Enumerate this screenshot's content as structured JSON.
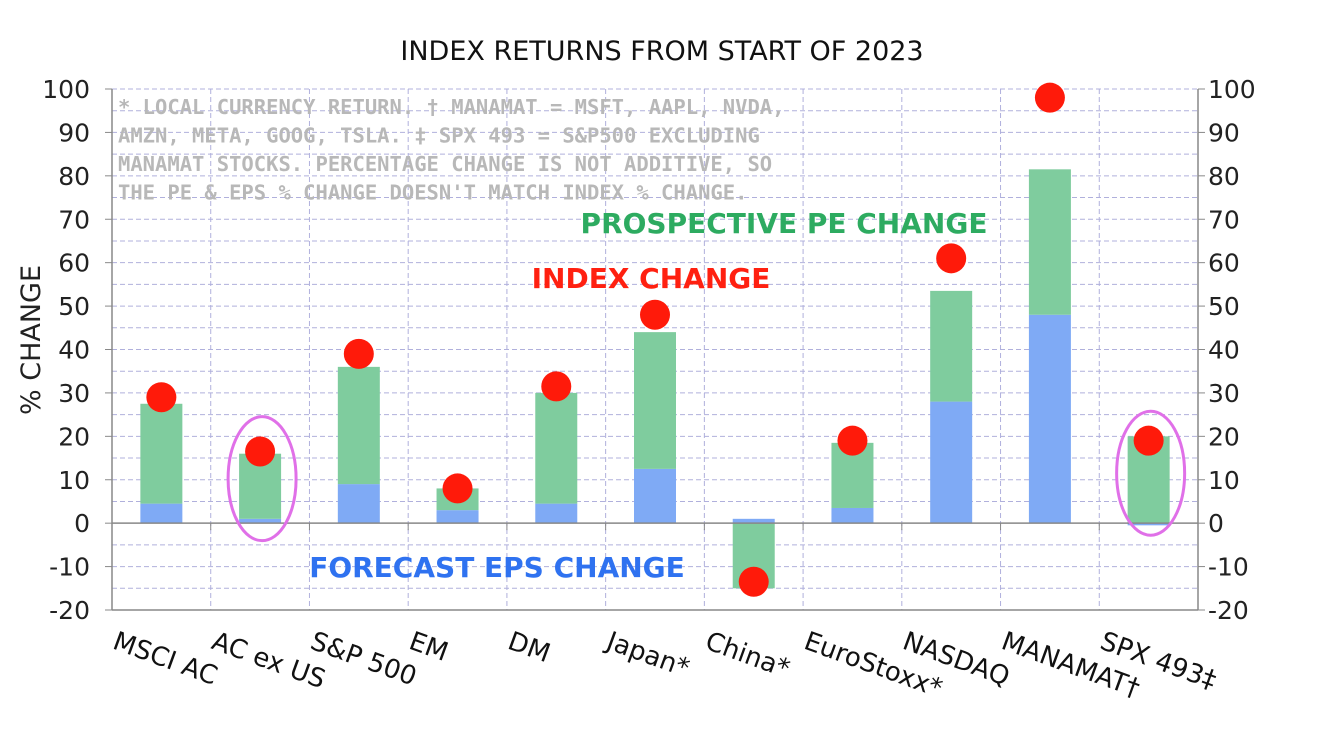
{
  "chart_data": {
    "type": "bar",
    "title": "INDEX RETURNS FROM START OF 2023",
    "ylabel": "% CHANGE",
    "ylim": [
      -20,
      100
    ],
    "yticks": [
      "-20",
      "-10",
      "0",
      "10",
      "20",
      "30",
      "40",
      "50",
      "60",
      "70",
      "80",
      "90",
      "100"
    ],
    "categories": [
      "MSCI AC",
      "AC ex US",
      "S&P 500",
      "EM",
      "DM",
      "Japan*",
      "China*",
      "EuroStoxx*",
      "NASDAQ",
      "MANAMAT†",
      "SPX 493‡"
    ],
    "series": [
      {
        "name": "FORECAST EPS CHANGE",
        "type": "stacked-bar",
        "color": "#7faaf5",
        "values": [
          4.5,
          1,
          9,
          3,
          4.5,
          12.5,
          1,
          3.5,
          28,
          48,
          -0.5
        ]
      },
      {
        "name": "PROSPECTIVE PE CHANGE",
        "type": "stacked-bar",
        "color": "#7fcc9e",
        "values": [
          23,
          15,
          27,
          5,
          25.5,
          31.5,
          -15,
          15,
          25.5,
          33.5,
          20
        ]
      },
      {
        "name": "INDEX CHANGE",
        "type": "scatter",
        "color": "#ff1a0a",
        "values": [
          29,
          16.5,
          39,
          8,
          31.5,
          48,
          -13.5,
          19,
          61,
          98,
          19
        ]
      }
    ],
    "highlighted_categories": [
      "AC ex US",
      "SPX 493‡"
    ],
    "highlight_color": "#e070e8",
    "note_lines": [
      "* LOCAL CURRENCY RETURN.  † MANAMAT = MSFT, AAPL, NVDA,",
      "AMZN, META, GOOG, TSLA.   ‡ SPX 493 = S&P500 EXCLUDING",
      "MANAMAT STOCKS.  PERCENTAGE CHANGE IS NOT ADDITIVE, SO",
      "THE PE & EPS % CHANGE DOESN'T MATCH INDEX % CHANGE."
    ],
    "grid": true,
    "dual_y_axis": true
  }
}
